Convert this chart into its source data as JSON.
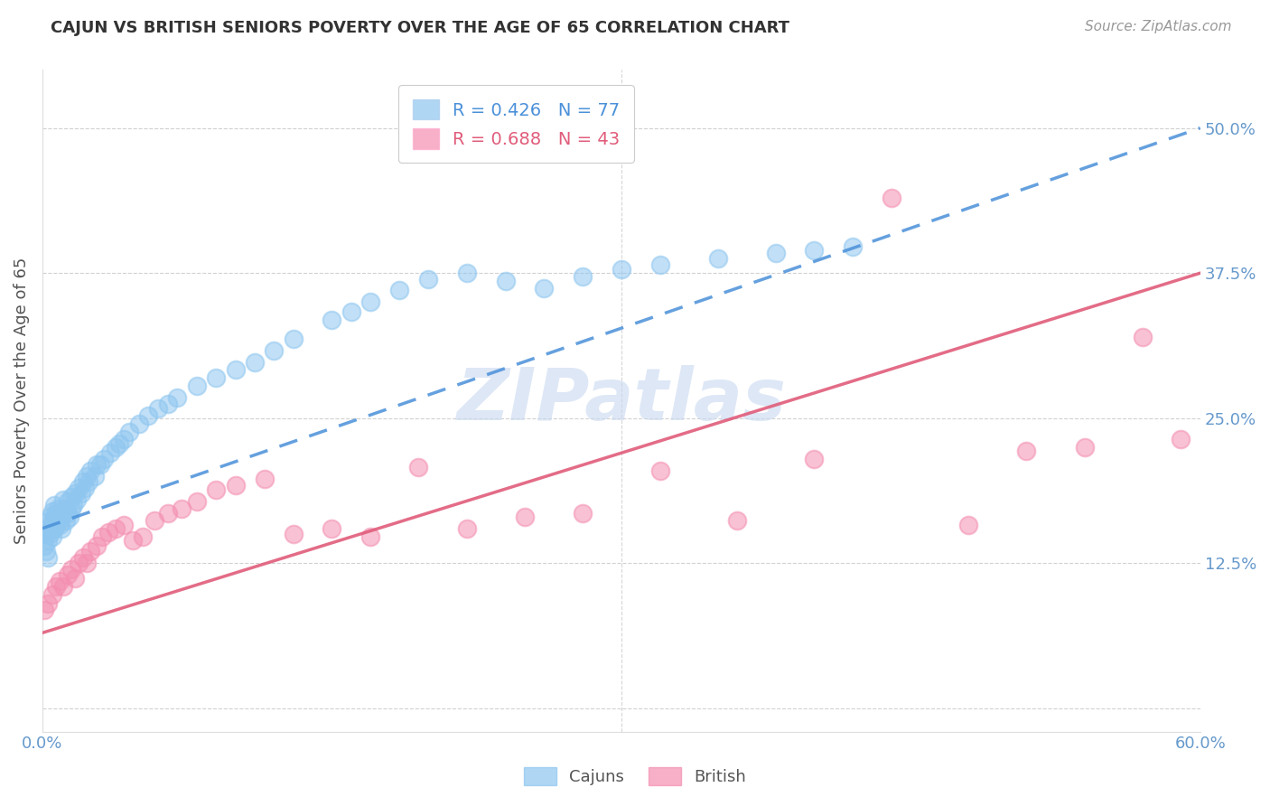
{
  "title": "CAJUN VS BRITISH SENIORS POVERTY OVER THE AGE OF 65 CORRELATION CHART",
  "source": "Source: ZipAtlas.com",
  "ylabel_label": "Seniors Poverty Over the Age of 65",
  "legend_cajun": "Cajuns",
  "legend_british": "British",
  "cajun_R": "0.426",
  "cajun_N": "77",
  "british_R": "0.688",
  "british_N": "43",
  "cajun_color": "#8EC6F0",
  "british_color": "#F48FB1",
  "cajun_line_color": "#4A90D9",
  "british_line_color": "#E05C7A",
  "watermark_color": "#C8D8F0",
  "background_color": "#FFFFFF",
  "grid_color": "#CCCCCC",
  "axis_label_color": "#6699CC",
  "title_color": "#333333",
  "cajun_scatter_x": [
    0.001,
    0.002,
    0.002,
    0.002,
    0.003,
    0.003,
    0.003,
    0.004,
    0.004,
    0.005,
    0.005,
    0.005,
    0.006,
    0.006,
    0.006,
    0.007,
    0.007,
    0.008,
    0.008,
    0.009,
    0.009,
    0.01,
    0.01,
    0.011,
    0.011,
    0.012,
    0.012,
    0.013,
    0.013,
    0.014,
    0.015,
    0.015,
    0.016,
    0.017,
    0.018,
    0.019,
    0.02,
    0.021,
    0.022,
    0.023,
    0.024,
    0.025,
    0.027,
    0.028,
    0.03,
    0.032,
    0.035,
    0.038,
    0.04,
    0.042,
    0.045,
    0.05,
    0.055,
    0.06,
    0.065,
    0.07,
    0.08,
    0.09,
    0.1,
    0.11,
    0.12,
    0.13,
    0.15,
    0.16,
    0.17,
    0.185,
    0.2,
    0.22,
    0.24,
    0.26,
    0.28,
    0.3,
    0.32,
    0.35,
    0.38,
    0.4,
    0.42
  ],
  "cajun_scatter_y": [
    0.14,
    0.16,
    0.15,
    0.135,
    0.145,
    0.155,
    0.13,
    0.15,
    0.165,
    0.148,
    0.16,
    0.17,
    0.155,
    0.165,
    0.175,
    0.158,
    0.168,
    0.162,
    0.172,
    0.158,
    0.168,
    0.155,
    0.165,
    0.17,
    0.18,
    0.162,
    0.172,
    0.168,
    0.178,
    0.165,
    0.172,
    0.182,
    0.175,
    0.185,
    0.18,
    0.19,
    0.185,
    0.195,
    0.19,
    0.2,
    0.195,
    0.205,
    0.2,
    0.21,
    0.21,
    0.215,
    0.22,
    0.225,
    0.228,
    0.232,
    0.238,
    0.245,
    0.252,
    0.258,
    0.262,
    0.268,
    0.278,
    0.285,
    0.292,
    0.298,
    0.308,
    0.318,
    0.335,
    0.342,
    0.35,
    0.36,
    0.37,
    0.375,
    0.368,
    0.362,
    0.372,
    0.378,
    0.382,
    0.388,
    0.392,
    0.395,
    0.398
  ],
  "british_scatter_x": [
    0.001,
    0.003,
    0.005,
    0.007,
    0.009,
    0.011,
    0.013,
    0.015,
    0.017,
    0.019,
    0.021,
    0.023,
    0.025,
    0.028,
    0.031,
    0.034,
    0.038,
    0.042,
    0.047,
    0.052,
    0.058,
    0.065,
    0.072,
    0.08,
    0.09,
    0.1,
    0.115,
    0.13,
    0.15,
    0.17,
    0.195,
    0.22,
    0.25,
    0.28,
    0.32,
    0.36,
    0.4,
    0.44,
    0.48,
    0.51,
    0.54,
    0.57,
    0.59
  ],
  "british_scatter_y": [
    0.085,
    0.09,
    0.098,
    0.105,
    0.11,
    0.105,
    0.115,
    0.12,
    0.112,
    0.125,
    0.13,
    0.125,
    0.135,
    0.14,
    0.148,
    0.152,
    0.155,
    0.158,
    0.145,
    0.148,
    0.162,
    0.168,
    0.172,
    0.178,
    0.188,
    0.192,
    0.198,
    0.15,
    0.155,
    0.148,
    0.208,
    0.155,
    0.165,
    0.168,
    0.205,
    0.162,
    0.215,
    0.44,
    0.158,
    0.222,
    0.225,
    0.32,
    0.232
  ],
  "xlim": [
    0.0,
    0.6
  ],
  "ylim": [
    -0.02,
    0.55
  ],
  "yticks": [
    0.0,
    0.125,
    0.25,
    0.375,
    0.5
  ],
  "ytick_labels": [
    "",
    "12.5%",
    "25.0%",
    "37.5%",
    "50.0%"
  ],
  "xtick_labels": [
    "0.0%",
    "60.0%"
  ],
  "cajun_line_x": [
    0.0,
    0.6
  ],
  "cajun_line_y": [
    0.155,
    0.5
  ],
  "british_line_x": [
    0.0,
    0.6
  ],
  "british_line_y": [
    0.065,
    0.375
  ]
}
